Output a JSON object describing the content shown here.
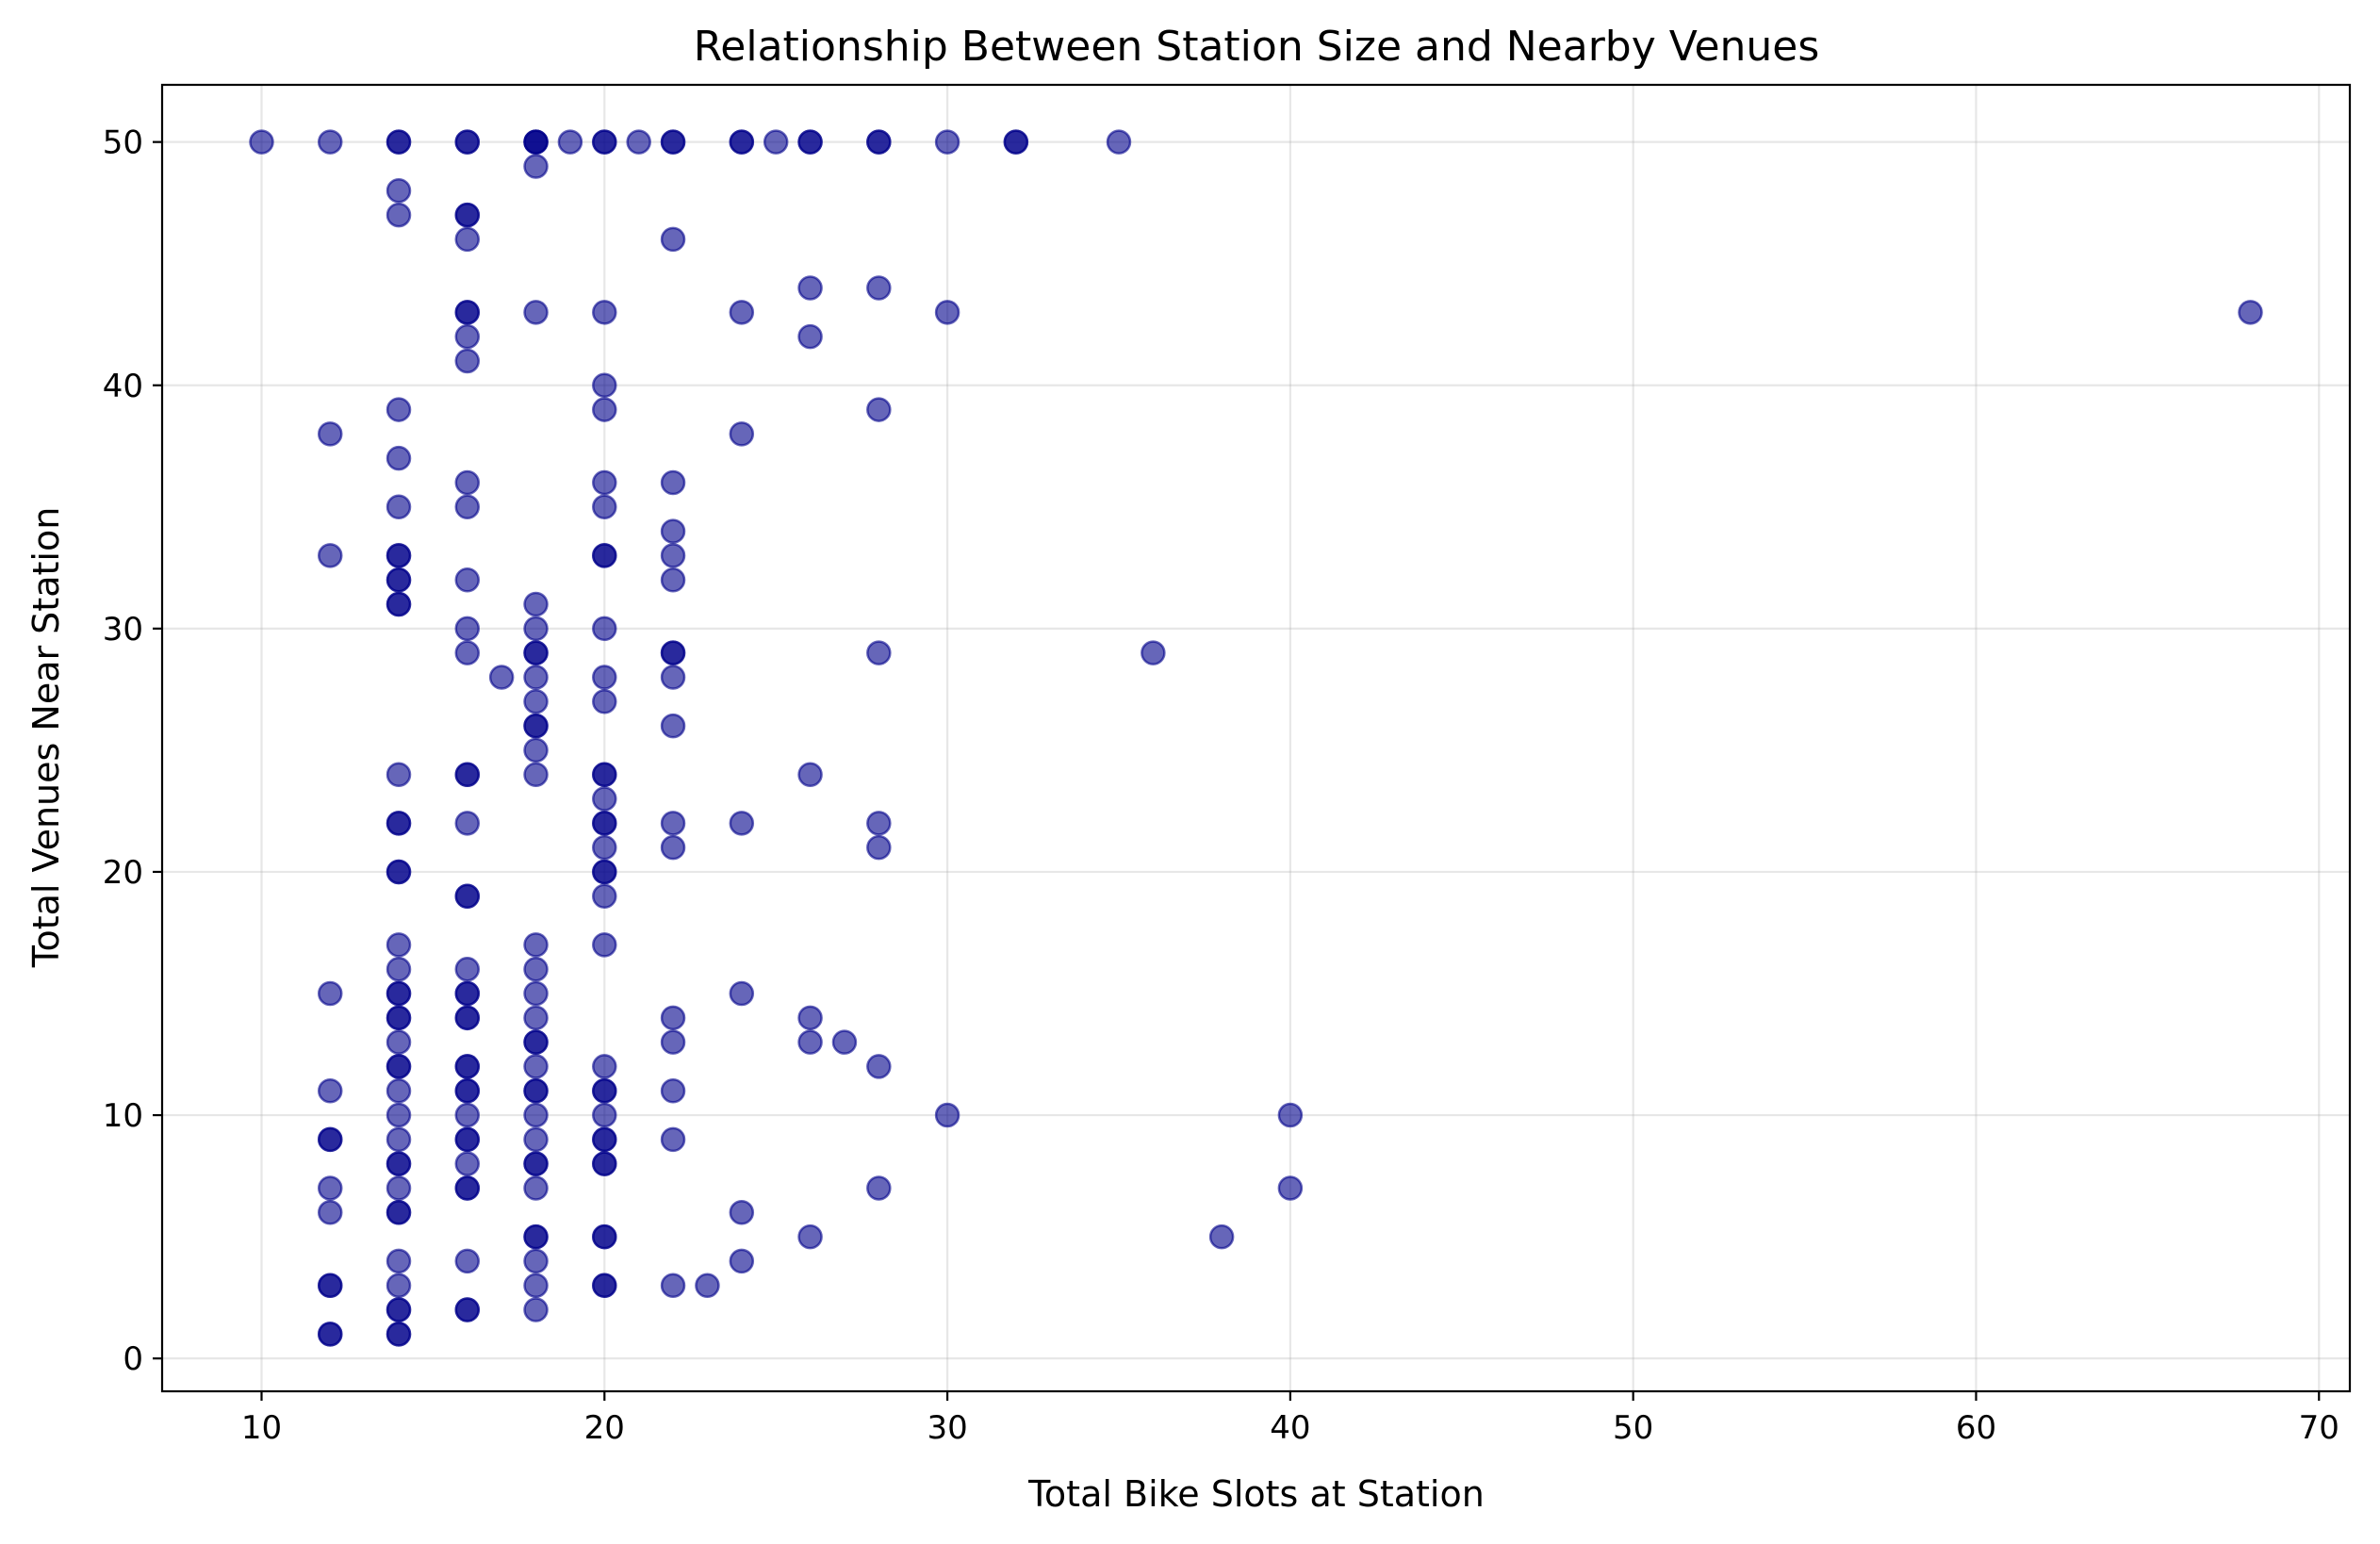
{
  "chart_data": {
    "type": "scatter",
    "title": "Relationship Between Station Size and Nearby Venues",
    "xlabel": "Total Bike Slots at Station",
    "ylabel": "Total Venues Near Station",
    "xlim": [
      7.1,
      70.9
    ],
    "ylim": [
      -1.35,
      52.35
    ],
    "xticks": [
      10,
      20,
      30,
      40,
      50,
      60,
      70
    ],
    "yticks": [
      0,
      10,
      20,
      30,
      40,
      50
    ],
    "grid": true,
    "marker_color": "#00008b",
    "marker_alpha": 0.6,
    "points": [
      [
        10,
        50
      ],
      [
        12,
        50
      ],
      [
        14,
        50
      ],
      [
        14,
        50
      ],
      [
        16,
        50
      ],
      [
        16,
        50
      ],
      [
        18,
        50
      ],
      [
        18,
        50
      ],
      [
        18,
        50
      ],
      [
        19,
        50
      ],
      [
        20,
        50
      ],
      [
        20,
        50
      ],
      [
        21,
        50
      ],
      [
        22,
        50
      ],
      [
        22,
        50
      ],
      [
        24,
        50
      ],
      [
        24,
        50
      ],
      [
        25,
        50
      ],
      [
        26,
        50
      ],
      [
        26,
        50
      ],
      [
        28,
        50
      ],
      [
        28,
        50
      ],
      [
        30,
        50
      ],
      [
        32,
        50
      ],
      [
        32,
        50
      ],
      [
        35,
        50
      ],
      [
        14,
        48
      ],
      [
        18,
        49
      ],
      [
        14,
        47
      ],
      [
        16,
        47
      ],
      [
        16,
        47
      ],
      [
        16,
        46
      ],
      [
        22,
        46
      ],
      [
        26,
        44
      ],
      [
        28,
        44
      ],
      [
        16,
        43
      ],
      [
        16,
        43
      ],
      [
        18,
        43
      ],
      [
        20,
        43
      ],
      [
        24,
        43
      ],
      [
        30,
        43
      ],
      [
        68,
        43
      ],
      [
        16,
        42
      ],
      [
        26,
        42
      ],
      [
        16,
        41
      ],
      [
        20,
        40
      ],
      [
        14,
        39
      ],
      [
        20,
        39
      ],
      [
        28,
        39
      ],
      [
        12,
        38
      ],
      [
        24,
        38
      ],
      [
        14,
        37
      ],
      [
        16,
        36
      ],
      [
        20,
        36
      ],
      [
        22,
        36
      ],
      [
        14,
        35
      ],
      [
        16,
        35
      ],
      [
        20,
        35
      ],
      [
        22,
        34
      ],
      [
        12,
        33
      ],
      [
        14,
        33
      ],
      [
        14,
        33
      ],
      [
        20,
        33
      ],
      [
        20,
        33
      ],
      [
        22,
        33
      ],
      [
        14,
        32
      ],
      [
        14,
        32
      ],
      [
        16,
        32
      ],
      [
        22,
        32
      ],
      [
        14,
        31
      ],
      [
        14,
        31
      ],
      [
        18,
        31
      ],
      [
        16,
        30
      ],
      [
        18,
        30
      ],
      [
        20,
        30
      ],
      [
        16,
        29
      ],
      [
        18,
        29
      ],
      [
        18,
        29
      ],
      [
        22,
        29
      ],
      [
        22,
        29
      ],
      [
        28,
        29
      ],
      [
        36,
        29
      ],
      [
        17,
        28
      ],
      [
        18,
        28
      ],
      [
        20,
        28
      ],
      [
        22,
        28
      ],
      [
        18,
        27
      ],
      [
        20,
        27
      ],
      [
        18,
        26
      ],
      [
        18,
        26
      ],
      [
        22,
        26
      ],
      [
        18,
        25
      ],
      [
        14,
        24
      ],
      [
        16,
        24
      ],
      [
        16,
        24
      ],
      [
        18,
        24
      ],
      [
        20,
        24
      ],
      [
        20,
        24
      ],
      [
        26,
        24
      ],
      [
        20,
        23
      ],
      [
        14,
        22
      ],
      [
        14,
        22
      ],
      [
        16,
        22
      ],
      [
        20,
        22
      ],
      [
        20,
        22
      ],
      [
        22,
        22
      ],
      [
        24,
        22
      ],
      [
        28,
        22
      ],
      [
        20,
        21
      ],
      [
        22,
        21
      ],
      [
        28,
        21
      ],
      [
        14,
        20
      ],
      [
        14,
        20
      ],
      [
        20,
        20
      ],
      [
        20,
        20
      ],
      [
        16,
        19
      ],
      [
        16,
        19
      ],
      [
        20,
        19
      ],
      [
        14,
        17
      ],
      [
        18,
        17
      ],
      [
        20,
        17
      ],
      [
        14,
        16
      ],
      [
        16,
        16
      ],
      [
        18,
        16
      ],
      [
        12,
        15
      ],
      [
        14,
        15
      ],
      [
        14,
        15
      ],
      [
        16,
        15
      ],
      [
        16,
        15
      ],
      [
        18,
        15
      ],
      [
        24,
        15
      ],
      [
        14,
        14
      ],
      [
        14,
        14
      ],
      [
        16,
        14
      ],
      [
        16,
        14
      ],
      [
        18,
        14
      ],
      [
        22,
        14
      ],
      [
        26,
        14
      ],
      [
        14,
        13
      ],
      [
        18,
        13
      ],
      [
        18,
        13
      ],
      [
        22,
        13
      ],
      [
        26,
        13
      ],
      [
        27,
        13
      ],
      [
        14,
        12
      ],
      [
        14,
        12
      ],
      [
        16,
        12
      ],
      [
        16,
        12
      ],
      [
        18,
        12
      ],
      [
        20,
        12
      ],
      [
        28,
        12
      ],
      [
        12,
        11
      ],
      [
        14,
        11
      ],
      [
        16,
        11
      ],
      [
        16,
        11
      ],
      [
        18,
        11
      ],
      [
        18,
        11
      ],
      [
        20,
        11
      ],
      [
        20,
        11
      ],
      [
        22,
        11
      ],
      [
        14,
        10
      ],
      [
        16,
        10
      ],
      [
        18,
        10
      ],
      [
        20,
        10
      ],
      [
        30,
        10
      ],
      [
        40,
        10
      ],
      [
        12,
        9
      ],
      [
        12,
        9
      ],
      [
        14,
        9
      ],
      [
        16,
        9
      ],
      [
        16,
        9
      ],
      [
        18,
        9
      ],
      [
        20,
        9
      ],
      [
        20,
        9
      ],
      [
        22,
        9
      ],
      [
        14,
        8
      ],
      [
        14,
        8
      ],
      [
        16,
        8
      ],
      [
        18,
        8
      ],
      [
        18,
        8
      ],
      [
        20,
        8
      ],
      [
        20,
        8
      ],
      [
        12,
        7
      ],
      [
        14,
        7
      ],
      [
        16,
        7
      ],
      [
        16,
        7
      ],
      [
        18,
        7
      ],
      [
        28,
        7
      ],
      [
        40,
        7
      ],
      [
        12,
        6
      ],
      [
        14,
        6
      ],
      [
        14,
        6
      ],
      [
        24,
        6
      ],
      [
        26,
        5
      ],
      [
        18,
        5
      ],
      [
        18,
        5
      ],
      [
        20,
        5
      ],
      [
        20,
        5
      ],
      [
        38,
        5
      ],
      [
        14,
        4
      ],
      [
        16,
        4
      ],
      [
        18,
        4
      ],
      [
        24,
        4
      ],
      [
        12,
        3
      ],
      [
        12,
        3
      ],
      [
        14,
        3
      ],
      [
        18,
        3
      ],
      [
        20,
        3
      ],
      [
        20,
        3
      ],
      [
        22,
        3
      ],
      [
        23,
        3
      ],
      [
        14,
        2
      ],
      [
        14,
        2
      ],
      [
        16,
        2
      ],
      [
        16,
        2
      ],
      [
        18,
        2
      ],
      [
        12,
        1
      ],
      [
        12,
        1
      ],
      [
        14,
        1
      ],
      [
        14,
        1
      ]
    ]
  }
}
